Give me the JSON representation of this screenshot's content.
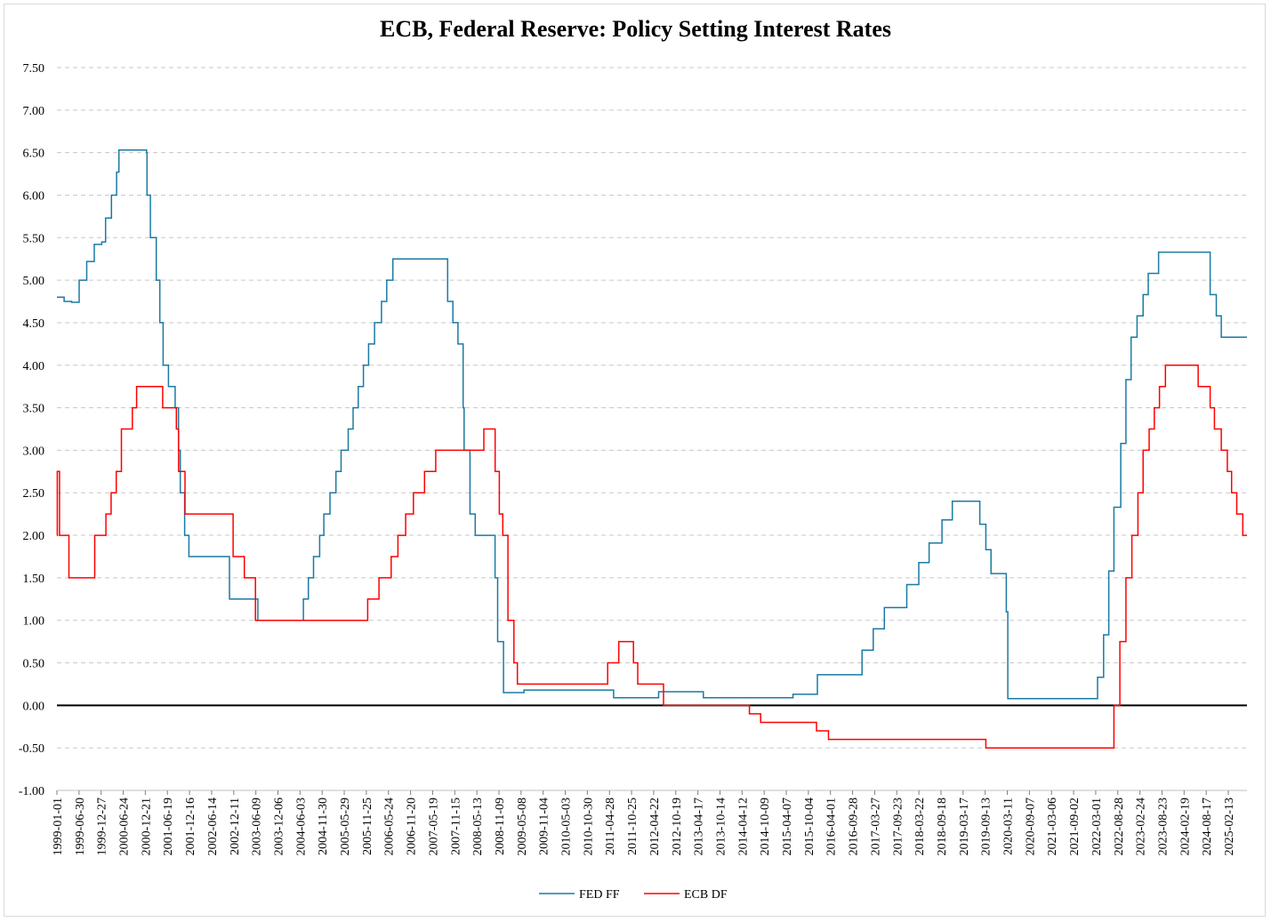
{
  "chart_data": {
    "type": "line",
    "title": "ECB, Federal Reserve: Policy Setting Interest Rates",
    "xlabel": "",
    "ylabel": "",
    "ylim": [
      -1.0,
      7.5
    ],
    "y_ticks": [
      "7.50",
      "7.00",
      "6.50",
      "6.00",
      "5.50",
      "5.00",
      "4.50",
      "4.00",
      "3.50",
      "3.00",
      "2.50",
      "2.00",
      "1.50",
      "1.00",
      "0.50",
      "0.00",
      "-0.50",
      "-1.00"
    ],
    "x_range": [
      "1999-01-01",
      "2025-07-15"
    ],
    "x_ticks": [
      "1999-01-01",
      "1999-06-30",
      "1999-12-27",
      "2000-06-24",
      "2000-12-21",
      "2001-06-19",
      "2001-12-16",
      "2002-06-14",
      "2002-12-11",
      "2003-06-09",
      "2003-12-06",
      "2004-06-03",
      "2004-11-30",
      "2005-05-29",
      "2005-11-25",
      "2006-05-24",
      "2006-11-20",
      "2007-05-19",
      "2007-11-15",
      "2008-05-13",
      "2008-11-09",
      "2009-05-08",
      "2009-11-04",
      "2010-05-03",
      "2010-10-30",
      "2011-04-28",
      "2011-10-25",
      "2012-04-22",
      "2012-10-19",
      "2013-04-17",
      "2013-10-14",
      "2014-04-12",
      "2014-10-09",
      "2015-04-07",
      "2015-10-04",
      "2016-04-01",
      "2016-09-28",
      "2017-03-27",
      "2017-09-23",
      "2018-03-22",
      "2018-09-18",
      "2019-03-17",
      "2019-09-13",
      "2020-03-11",
      "2020-09-07",
      "2021-03-06",
      "2021-09-02",
      "2022-03-01",
      "2022-08-28",
      "2023-02-24",
      "2023-08-23",
      "2024-02-19",
      "2024-08-17",
      "2025-02-13"
    ],
    "grid": "horizontal-dashed",
    "legend_position": "bottom",
    "series": [
      {
        "name": "FED FF",
        "color": "#1a7aa3",
        "points": [
          [
            "1999-01-01",
            4.8
          ],
          [
            "1999-03-01",
            4.75
          ],
          [
            "1999-05-01",
            4.74
          ],
          [
            "1999-07-01",
            5.0
          ],
          [
            "1999-09-01",
            5.22
          ],
          [
            "1999-11-01",
            5.42
          ],
          [
            "2000-01-01",
            5.45
          ],
          [
            "2000-02-01",
            5.73
          ],
          [
            "2000-03-20",
            6.0
          ],
          [
            "2000-05-01",
            6.27
          ],
          [
            "2000-05-20",
            6.53
          ],
          [
            "2000-12-31",
            6.5
          ],
          [
            "2001-01-04",
            6.0
          ],
          [
            "2001-01-31",
            5.5
          ],
          [
            "2001-03-20",
            5.0
          ],
          [
            "2001-04-18",
            4.5
          ],
          [
            "2001-05-15",
            4.0
          ],
          [
            "2001-06-27",
            3.75
          ],
          [
            "2001-08-21",
            3.5
          ],
          [
            "2001-09-17",
            3.0
          ],
          [
            "2001-10-02",
            2.5
          ],
          [
            "2001-11-06",
            2.0
          ],
          [
            "2001-12-11",
            1.75
          ],
          [
            "2002-11-06",
            1.25
          ],
          [
            "2003-06-25",
            1.0
          ],
          [
            "2004-06-30",
            1.25
          ],
          [
            "2004-08-10",
            1.5
          ],
          [
            "2004-09-21",
            1.75
          ],
          [
            "2004-11-10",
            2.0
          ],
          [
            "2004-12-14",
            2.25
          ],
          [
            "2005-02-02",
            2.5
          ],
          [
            "2005-03-22",
            2.75
          ],
          [
            "2005-05-03",
            3.0
          ],
          [
            "2005-06-30",
            3.25
          ],
          [
            "2005-08-09",
            3.5
          ],
          [
            "2005-09-20",
            3.75
          ],
          [
            "2005-11-01",
            4.0
          ],
          [
            "2005-12-13",
            4.25
          ],
          [
            "2006-01-31",
            4.5
          ],
          [
            "2006-03-28",
            4.75
          ],
          [
            "2006-05-10",
            5.0
          ],
          [
            "2006-06-29",
            5.25
          ],
          [
            "2007-09-18",
            4.75
          ],
          [
            "2007-10-31",
            4.5
          ],
          [
            "2007-12-11",
            4.25
          ],
          [
            "2008-01-22",
            3.5
          ],
          [
            "2008-01-30",
            3.0
          ],
          [
            "2008-03-18",
            2.25
          ],
          [
            "2008-04-30",
            2.0
          ],
          [
            "2008-10-08",
            1.5
          ],
          [
            "2008-10-29",
            0.75
          ],
          [
            "2008-12-16",
            0.15
          ],
          [
            "2009-06-01",
            0.18
          ],
          [
            "2010-06-01",
            0.18
          ],
          [
            "2011-06-01",
            0.09
          ],
          [
            "2012-06-01",
            0.16
          ],
          [
            "2013-06-01",
            0.09
          ],
          [
            "2014-06-01",
            0.09
          ],
          [
            "2015-06-01",
            0.13
          ],
          [
            "2015-12-16",
            0.36
          ],
          [
            "2016-12-14",
            0.65
          ],
          [
            "2017-03-15",
            0.9
          ],
          [
            "2017-06-14",
            1.15
          ],
          [
            "2017-12-13",
            1.42
          ],
          [
            "2018-03-21",
            1.68
          ],
          [
            "2018-06-13",
            1.91
          ],
          [
            "2018-09-26",
            2.18
          ],
          [
            "2018-12-19",
            2.4
          ],
          [
            "2019-07-31",
            2.13
          ],
          [
            "2019-09-18",
            1.83
          ],
          [
            "2019-10-30",
            1.55
          ],
          [
            "2020-03-03",
            1.1
          ],
          [
            "2020-03-15",
            0.08
          ],
          [
            "2021-06-01",
            0.08
          ],
          [
            "2022-03-16",
            0.33
          ],
          [
            "2022-05-04",
            0.83
          ],
          [
            "2022-06-15",
            1.58
          ],
          [
            "2022-07-27",
            2.33
          ],
          [
            "2022-09-21",
            3.08
          ],
          [
            "2022-11-02",
            3.83
          ],
          [
            "2022-12-14",
            4.33
          ],
          [
            "2023-02-01",
            4.58
          ],
          [
            "2023-03-22",
            4.83
          ],
          [
            "2023-05-03",
            5.08
          ],
          [
            "2023-07-26",
            5.33
          ],
          [
            "2024-09-18",
            4.83
          ],
          [
            "2024-11-07",
            4.58
          ],
          [
            "2024-12-18",
            4.33
          ],
          [
            "2025-07-15",
            4.33
          ]
        ]
      },
      {
        "name": "ECB DF",
        "color": "#ff0000",
        "points": [
          [
            "1999-01-01",
            2.0
          ],
          [
            "1999-01-04",
            2.75
          ],
          [
            "1999-01-22",
            2.0
          ],
          [
            "1999-04-09",
            1.5
          ],
          [
            "1999-11-05",
            2.0
          ],
          [
            "2000-02-04",
            2.25
          ],
          [
            "2000-03-17",
            2.5
          ],
          [
            "2000-04-28",
            2.75
          ],
          [
            "2000-06-09",
            3.25
          ],
          [
            "2000-09-06",
            3.5
          ],
          [
            "2000-10-11",
            3.75
          ],
          [
            "2001-05-11",
            3.5
          ],
          [
            "2001-08-31",
            3.25
          ],
          [
            "2001-09-18",
            2.75
          ],
          [
            "2001-11-09",
            2.25
          ],
          [
            "2002-12-06",
            1.75
          ],
          [
            "2003-03-07",
            1.5
          ],
          [
            "2003-06-06",
            1.0
          ],
          [
            "2005-12-06",
            1.25
          ],
          [
            "2006-03-08",
            1.5
          ],
          [
            "2006-06-15",
            1.75
          ],
          [
            "2006-08-09",
            2.0
          ],
          [
            "2006-10-11",
            2.25
          ],
          [
            "2006-12-13",
            2.5
          ],
          [
            "2007-03-14",
            2.75
          ],
          [
            "2007-06-13",
            3.0
          ],
          [
            "2008-07-09",
            3.25
          ],
          [
            "2008-10-09",
            2.75
          ],
          [
            "2008-11-12",
            2.25
          ],
          [
            "2008-12-10",
            2.0
          ],
          [
            "2009-01-21",
            1.0
          ],
          [
            "2009-03-11",
            0.5
          ],
          [
            "2009-04-08",
            0.25
          ],
          [
            "2011-04-13",
            0.5
          ],
          [
            "2011-07-13",
            0.75
          ],
          [
            "2011-11-09",
            0.5
          ],
          [
            "2011-12-14",
            0.25
          ],
          [
            "2012-07-11",
            0.0
          ],
          [
            "2014-06-11",
            -0.1
          ],
          [
            "2014-09-10",
            -0.2
          ],
          [
            "2015-12-09",
            -0.3
          ],
          [
            "2016-03-16",
            -0.4
          ],
          [
            "2019-09-18",
            -0.5
          ],
          [
            "2022-07-27",
            0.0
          ],
          [
            "2022-09-14",
            0.75
          ],
          [
            "2022-11-02",
            1.5
          ],
          [
            "2022-12-21",
            2.0
          ],
          [
            "2023-02-08",
            2.5
          ],
          [
            "2023-03-22",
            3.0
          ],
          [
            "2023-05-10",
            3.25
          ],
          [
            "2023-06-21",
            3.5
          ],
          [
            "2023-08-02",
            3.75
          ],
          [
            "2023-09-20",
            4.0
          ],
          [
            "2024-06-12",
            3.75
          ],
          [
            "2024-09-18",
            3.5
          ],
          [
            "2024-10-23",
            3.25
          ],
          [
            "2024-12-18",
            3.0
          ],
          [
            "2025-02-05",
            2.75
          ],
          [
            "2025-03-12",
            2.5
          ],
          [
            "2025-04-23",
            2.25
          ],
          [
            "2025-06-11",
            2.0
          ],
          [
            "2025-07-15",
            2.0
          ]
        ]
      }
    ]
  }
}
